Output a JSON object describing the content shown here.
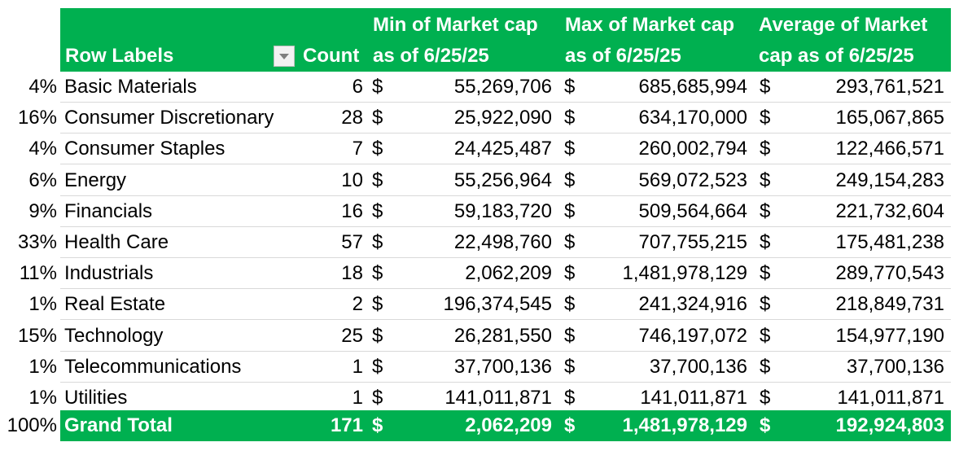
{
  "header": {
    "row_labels": "Row Labels",
    "count": "Count",
    "min_line1": "Min of Market cap",
    "min_line2": "as of 6/25/25",
    "max_line1": "Max of Market cap",
    "max_line2": "as of 6/25/25",
    "avg_line1": "Average of Market",
    "avg_line2": "cap as of 6/25/25",
    "filter_icon": "dropdown-arrow"
  },
  "currency_symbol": "$",
  "rows": [
    {
      "pct": "4%",
      "label": "Basic Materials",
      "count": "6",
      "min": "55,269,706",
      "max": "685,685,994",
      "avg": "293,761,521"
    },
    {
      "pct": "16%",
      "label": "Consumer Discretionary",
      "count": "28",
      "min": "25,922,090",
      "max": "634,170,000",
      "avg": "165,067,865"
    },
    {
      "pct": "4%",
      "label": "Consumer Staples",
      "count": "7",
      "min": "24,425,487",
      "max": "260,002,794",
      "avg": "122,466,571"
    },
    {
      "pct": "6%",
      "label": "Energy",
      "count": "10",
      "min": "55,256,964",
      "max": "569,072,523",
      "avg": "249,154,283"
    },
    {
      "pct": "9%",
      "label": "Financials",
      "count": "16",
      "min": "59,183,720",
      "max": "509,564,664",
      "avg": "221,732,604"
    },
    {
      "pct": "33%",
      "label": "Health Care",
      "count": "57",
      "min": "22,498,760",
      "max": "707,755,215",
      "avg": "175,481,238"
    },
    {
      "pct": "11%",
      "label": "Industrials",
      "count": "18",
      "min": "2,062,209",
      "max": "1,481,978,129",
      "avg": "289,770,543"
    },
    {
      "pct": "1%",
      "label": "Real Estate",
      "count": "2",
      "min": "196,374,545",
      "max": "241,324,916",
      "avg": "218,849,731"
    },
    {
      "pct": "15%",
      "label": "Technology",
      "count": "25",
      "min": "26,281,550",
      "max": "746,197,072",
      "avg": "154,977,190"
    },
    {
      "pct": "1%",
      "label": "Telecommunications",
      "count": "1",
      "min": "37,700,136",
      "max": "37,700,136",
      "avg": "37,700,136"
    },
    {
      "pct": "1%",
      "label": "Utilities",
      "count": "1",
      "min": "141,011,871",
      "max": "141,011,871",
      "avg": "141,011,871"
    }
  ],
  "total": {
    "pct": "100%",
    "label": "Grand Total",
    "count": "171",
    "min": "2,062,209",
    "max": "1,481,978,129",
    "avg": "192,924,803"
  },
  "colors": {
    "header_bg": "#00b050",
    "header_text": "#ffffff",
    "divider": "#d9d9d9"
  }
}
